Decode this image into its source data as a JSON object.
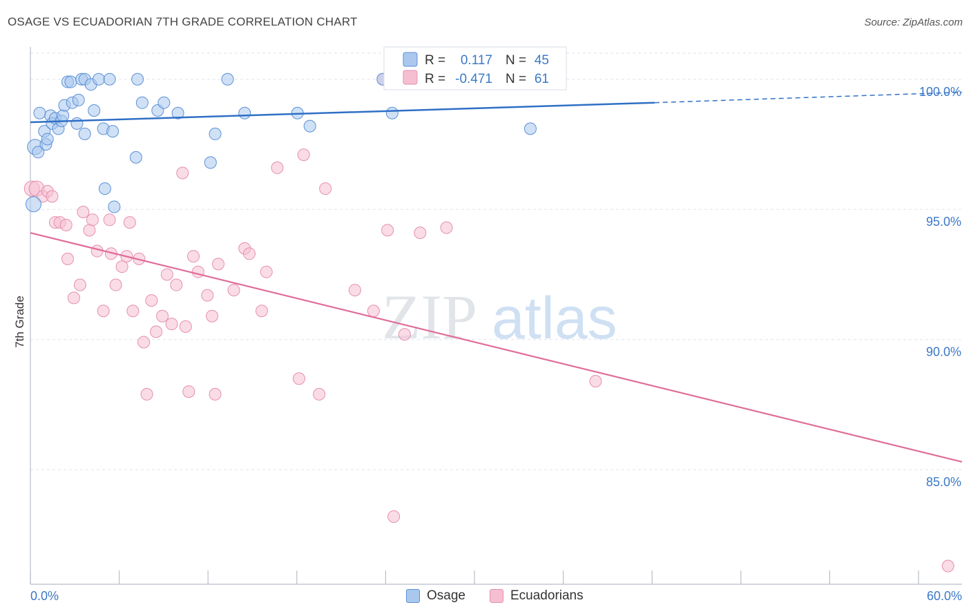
{
  "header": {
    "title": "OSAGE VS ECUADORIAN 7TH GRADE CORRELATION CHART",
    "source": "Source: ZipAtlas.com"
  },
  "watermark": {
    "part1": "ZIP",
    "part2": "atlas"
  },
  "colors": {
    "osage_fill": "#aac8ee",
    "osage_stroke": "#5b8fd6",
    "osage_line": "#2f6fc5",
    "ecuadorian_fill": "#f6bfd1",
    "ecuadorian_stroke": "#e58fae",
    "ecuadorian_line": "#e06c99",
    "tick_label": "#3b78c8",
    "grid": "#dde3ea"
  },
  "chart_data": {
    "type": "scatter",
    "title": "OSAGE VS ECUADORIAN 7TH GRADE CORRELATION CHART",
    "ylabel": "7th Grade",
    "xlabel": "",
    "xlim": [
      0,
      60
    ],
    "ylim": [
      80.6,
      101.4
    ],
    "x_tick_labels": [
      "0.0%",
      "60.0%"
    ],
    "y_ticks": [
      85,
      90,
      95,
      100
    ],
    "y_tick_labels": [
      "85.0%",
      "90.0%",
      "95.0%",
      "100.0%"
    ],
    "grid": true,
    "legend": {
      "placement": "top-center",
      "rows": [
        {
          "r_label": "R =",
          "r_value": "0.117",
          "n_label": "N =",
          "n_value": "45"
        },
        {
          "r_label": "R =",
          "r_value": "-0.471",
          "n_label": "N =",
          "n_value": "61"
        }
      ]
    },
    "series": [
      {
        "name": "Osage",
        "trend": {
          "x0": 0,
          "y0": 98.35,
          "x1": 40.2,
          "y1": 99.1,
          "dashed_to_x": 60,
          "dashed_to_y": 99.5
        },
        "points": [
          [
            0.2,
            95.2
          ],
          [
            0.3,
            97.4
          ],
          [
            0.5,
            97.2
          ],
          [
            0.6,
            98.7
          ],
          [
            0.9,
            98.0
          ],
          [
            1.0,
            97.5
          ],
          [
            1.1,
            97.7
          ],
          [
            1.3,
            98.6
          ],
          [
            1.4,
            98.3
          ],
          [
            1.6,
            98.5
          ],
          [
            1.8,
            98.1
          ],
          [
            2.0,
            98.4
          ],
          [
            2.1,
            98.6
          ],
          [
            2.2,
            99.0
          ],
          [
            2.4,
            99.9
          ],
          [
            2.6,
            99.9
          ],
          [
            2.7,
            99.1
          ],
          [
            3.0,
            98.3
          ],
          [
            3.1,
            99.2
          ],
          [
            3.3,
            100.0
          ],
          [
            3.5,
            100.0
          ],
          [
            3.5,
            97.9
          ],
          [
            3.9,
            99.8
          ],
          [
            4.1,
            98.8
          ],
          [
            4.4,
            100.0
          ],
          [
            4.7,
            98.1
          ],
          [
            4.8,
            95.8
          ],
          [
            5.1,
            100.0
          ],
          [
            5.3,
            98.0
          ],
          [
            5.4,
            95.1
          ],
          [
            6.8,
            97.0
          ],
          [
            6.9,
            100.0
          ],
          [
            7.2,
            99.1
          ],
          [
            8.2,
            98.8
          ],
          [
            8.6,
            99.1
          ],
          [
            9.5,
            98.7
          ],
          [
            11.6,
            96.8
          ],
          [
            11.9,
            97.9
          ],
          [
            12.7,
            100.0
          ],
          [
            13.8,
            98.7
          ],
          [
            17.2,
            98.7
          ],
          [
            18.0,
            98.2
          ],
          [
            22.7,
            100.0
          ],
          [
            23.3,
            98.7
          ],
          [
            32.2,
            98.1
          ]
        ]
      },
      {
        "name": "Ecuadorians",
        "trend": {
          "x0": 0,
          "y0": 94.1,
          "x1": 60,
          "y1": 85.3
        },
        "points": [
          [
            0.1,
            95.8
          ],
          [
            0.4,
            95.8
          ],
          [
            0.8,
            95.5
          ],
          [
            1.1,
            95.7
          ],
          [
            1.4,
            95.5
          ],
          [
            1.6,
            94.5
          ],
          [
            1.9,
            94.5
          ],
          [
            2.3,
            94.4
          ],
          [
            2.4,
            93.1
          ],
          [
            2.8,
            91.6
          ],
          [
            3.2,
            92.1
          ],
          [
            3.4,
            94.9
          ],
          [
            3.8,
            94.2
          ],
          [
            4.0,
            94.6
          ],
          [
            4.3,
            93.4
          ],
          [
            4.7,
            91.1
          ],
          [
            5.1,
            94.6
          ],
          [
            5.2,
            93.3
          ],
          [
            5.5,
            92.1
          ],
          [
            5.9,
            92.8
          ],
          [
            6.2,
            93.2
          ],
          [
            6.4,
            94.5
          ],
          [
            6.6,
            91.1
          ],
          [
            7.0,
            93.1
          ],
          [
            7.3,
            89.9
          ],
          [
            7.5,
            87.9
          ],
          [
            7.8,
            91.5
          ],
          [
            8.1,
            90.3
          ],
          [
            8.5,
            90.9
          ],
          [
            8.8,
            92.5
          ],
          [
            9.1,
            90.6
          ],
          [
            9.4,
            92.1
          ],
          [
            9.8,
            96.4
          ],
          [
            10.0,
            90.5
          ],
          [
            10.2,
            88.0
          ],
          [
            10.5,
            93.2
          ],
          [
            10.8,
            92.6
          ],
          [
            11.4,
            91.7
          ],
          [
            11.7,
            90.9
          ],
          [
            11.9,
            87.9
          ],
          [
            12.1,
            92.9
          ],
          [
            13.1,
            91.9
          ],
          [
            13.8,
            93.5
          ],
          [
            14.1,
            93.3
          ],
          [
            14.9,
            91.1
          ],
          [
            15.2,
            92.6
          ],
          [
            15.9,
            96.6
          ],
          [
            17.3,
            88.5
          ],
          [
            17.6,
            97.1
          ],
          [
            18.6,
            87.9
          ],
          [
            19.0,
            95.8
          ],
          [
            20.9,
            91.9
          ],
          [
            22.1,
            91.1
          ],
          [
            22.7,
            100.0
          ],
          [
            23.0,
            94.2
          ],
          [
            23.4,
            83.2
          ],
          [
            24.1,
            90.2
          ],
          [
            25.1,
            94.1
          ],
          [
            26.8,
            94.3
          ],
          [
            36.4,
            88.4
          ],
          [
            59.1,
            81.3
          ]
        ]
      }
    ]
  }
}
